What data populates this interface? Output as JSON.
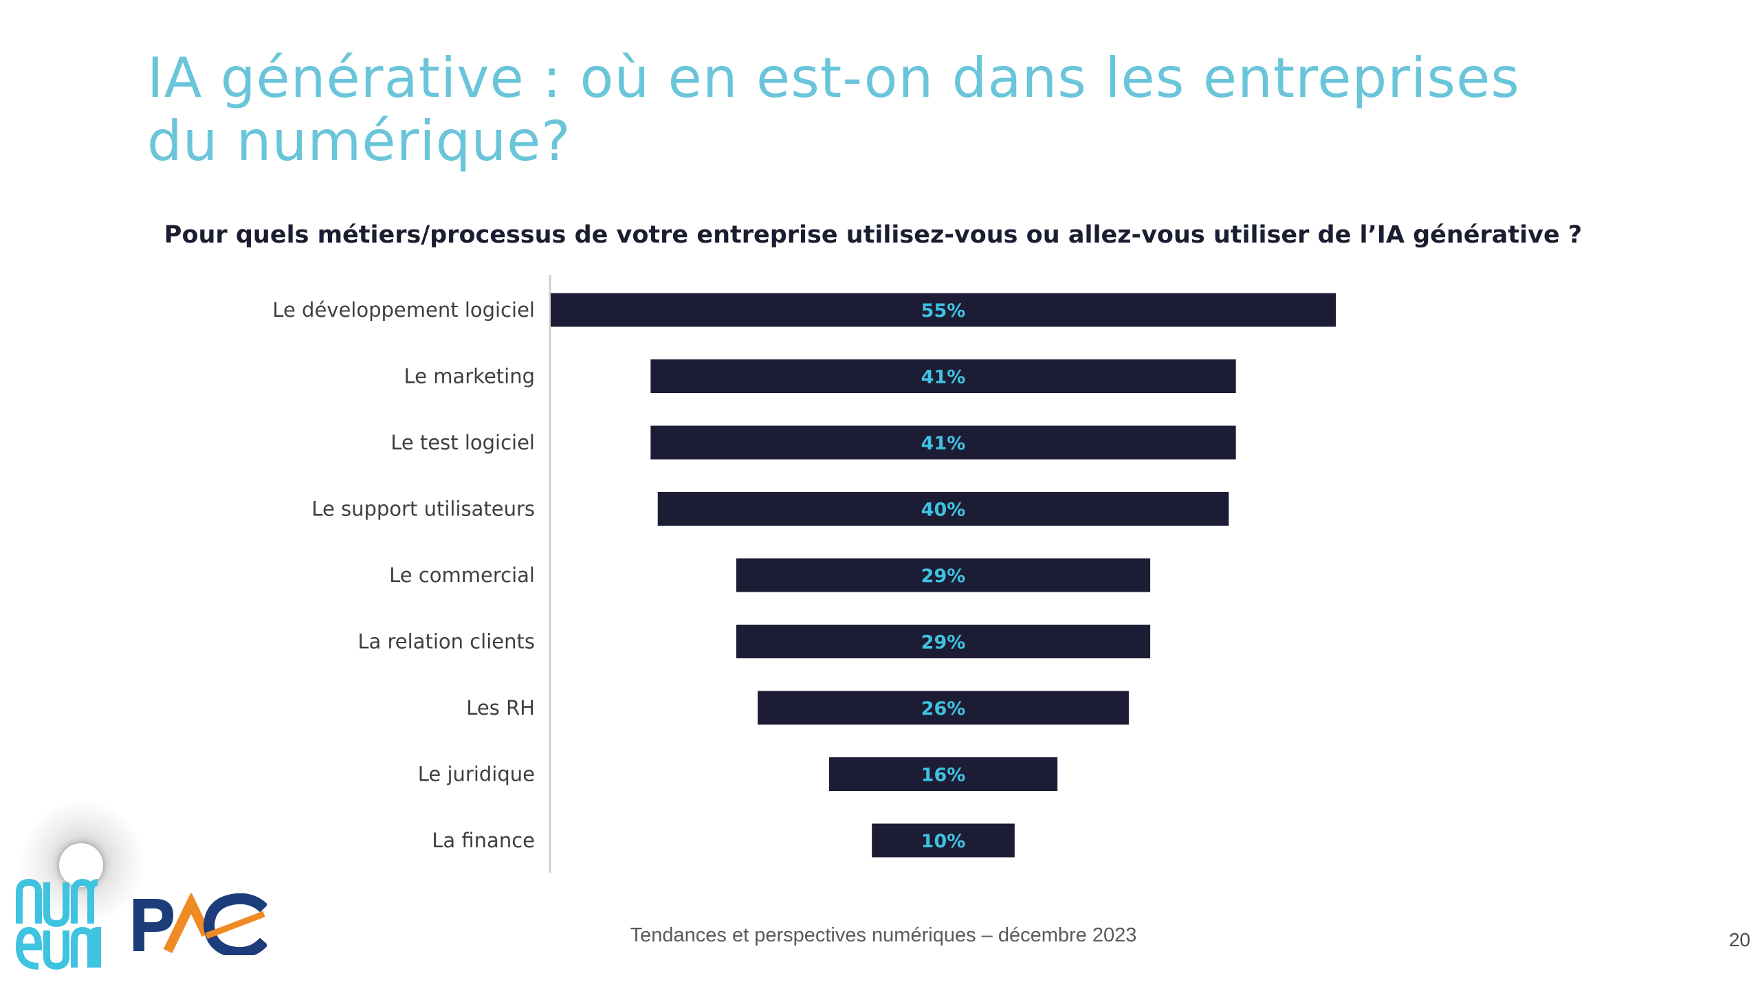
{
  "slide": {
    "title_line1": "IA générative : où en est-on dans les entreprises",
    "title_line2": "du numérique?",
    "question": "Pour quels métiers/processus de votre entreprise utilisez-vous ou allez-vous utiliser de l’IA générative ?",
    "footer": "Tendances et perspectives numériques – décembre 2023",
    "page_number": "20",
    "logos": {
      "numeum": "numeum",
      "pac": "PAC"
    }
  },
  "colors": {
    "title": "#6ac5da",
    "bar": "#1c1c35",
    "value_label": "#3fc3e0",
    "axis": "#d0d0d0"
  },
  "chart_data": {
    "type": "bar",
    "orientation": "horizontal-centered",
    "title": "Pour quels métiers/processus de votre entreprise utilisez-vous ou allez-vous utiliser de l’IA générative ?",
    "categories": [
      "Le développement logiciel",
      "Le marketing",
      "Le test logiciel",
      "Le support utilisateurs",
      "Le commercial",
      "La relation clients",
      "Les RH",
      "Le juridique",
      "La finance"
    ],
    "values": [
      55,
      41,
      41,
      40,
      29,
      29,
      26,
      16,
      10
    ],
    "value_labels": [
      "55%",
      "41%",
      "41%",
      "40%",
      "29%",
      "29%",
      "26%",
      "16%",
      "10%"
    ],
    "unit": "%",
    "xlabel": "",
    "ylabel": "",
    "xlim": [
      0,
      55
    ]
  }
}
